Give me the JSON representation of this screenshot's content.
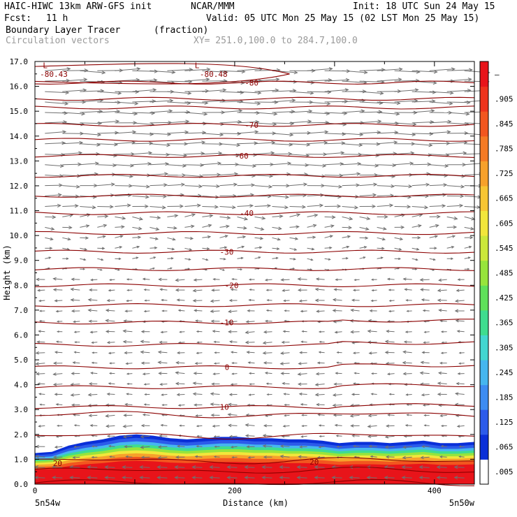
{
  "header": {
    "model": "HAIC-HIWC 13km ARW-GFS init",
    "source": "NCAR/MMM",
    "init": "Init: 18 UTC Sun 24 May 15",
    "fcst_label": "Fcst:",
    "fcst_value": "11 h",
    "valid": "Valid: 05 UTC Mon 25 May 15 (02 LST Mon 25 May 15)",
    "field": "Boundary Layer Tracer",
    "units": "(fraction)",
    "vectors": "Circulation vectors",
    "xsect": "XY= 251.0,100.0 to 284.7,100.0"
  },
  "chart_data": {
    "type": "heatmap",
    "ylabel": "Height (km)",
    "xlabel": "Distance (km)",
    "ylim": [
      0,
      17
    ],
    "xlim": [
      0,
      440
    ],
    "yticks": [
      "0.0",
      "1.0",
      "2.0",
      "3.0",
      "4.0",
      "5.0",
      "6.0",
      "7.0",
      "8.0",
      "9.0",
      "10.0",
      "11.0",
      "12.0",
      "13.0",
      "14.0",
      "15.0",
      "16.0",
      "17.0"
    ],
    "xticks": [
      {
        "value": 0,
        "label": "0"
      },
      {
        "value": 200,
        "label": "200"
      },
      {
        "value": 400,
        "label": "400"
      }
    ],
    "x_end_labels": {
      "left": "5n54w",
      "right": "5n50w"
    },
    "colorbar": {
      "labels": [
        ".005",
        ".065",
        ".125",
        ".185",
        ".245",
        ".305",
        ".365",
        ".425",
        ".485",
        ".545",
        ".605",
        ".665",
        ".725",
        ".785",
        ".845",
        ".905",
        "–"
      ],
      "colors": [
        "#ffffff",
        "#0a2fd8",
        "#2c5bea",
        "#3d8cf2",
        "#46b6ef",
        "#43d6d0",
        "#3fdc8f",
        "#5fe05a",
        "#97e43c",
        "#cbe83a",
        "#f2e63b",
        "#f7c533",
        "#f7a12b",
        "#f57a24",
        "#f2561f",
        "#ee331c",
        "#e8141a"
      ]
    },
    "temperature_contours": {
      "color": "#8b0000",
      "labels": [
        {
          "text": "-80.43",
          "x": 5,
          "h": 16.5
        },
        {
          "text": "-80.48",
          "x": 165,
          "h": 16.5
        },
        {
          "text": "-80",
          "x": 210,
          "h": 16.15
        },
        {
          "text": "-70",
          "x": 210,
          "h": 14.45
        },
        {
          "text": "-60",
          "x": 200,
          "h": 13.2
        },
        {
          "text": "-40",
          "x": 205,
          "h": 10.9
        },
        {
          "text": "-30",
          "x": 185,
          "h": 9.35
        },
        {
          "text": "-20",
          "x": 190,
          "h": 8.0
        },
        {
          "text": "-10",
          "x": 185,
          "h": 6.5
        },
        {
          "text": "0",
          "x": 190,
          "h": 4.7
        },
        {
          "text": "10",
          "x": 185,
          "h": 3.1
        },
        {
          "text": "20",
          "x": 275,
          "h": 0.9
        },
        {
          "text": "20",
          "x": 18,
          "h": 0.85
        }
      ],
      "low_markers": [
        {
          "text": "L",
          "x": 8,
          "h": 16.85
        },
        {
          "text": "L",
          "x": 160,
          "h": 16.85
        }
      ]
    },
    "tracer_layer": {
      "note_values": "fraction near 1.0 below ~0.6 km, decreasing to ~0.05 at top of layer",
      "top_km": [
        1.25,
        1.3,
        1.55,
        1.7,
        1.8,
        1.95,
        2.0,
        1.95,
        1.85,
        1.8,
        1.85,
        1.9,
        1.9,
        1.85,
        1.85,
        1.8,
        1.8,
        1.75,
        1.65,
        1.7,
        1.7,
        1.65,
        1.7,
        1.75,
        1.65,
        1.65,
        1.7
      ]
    }
  }
}
